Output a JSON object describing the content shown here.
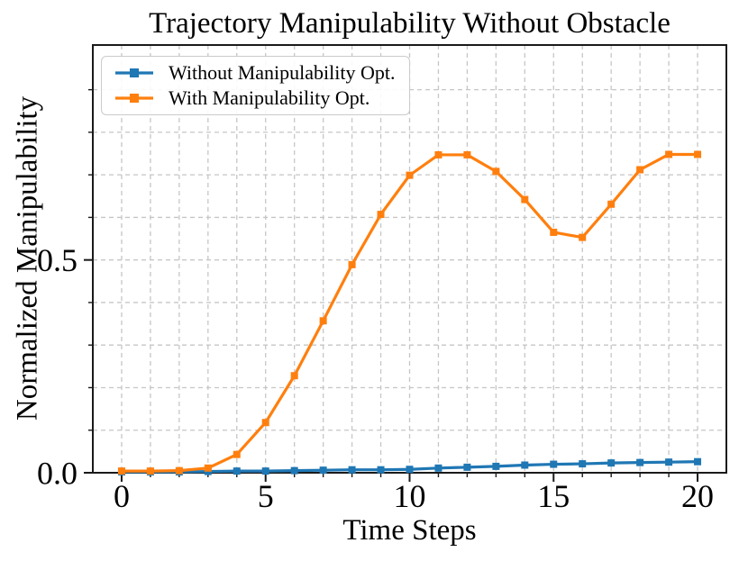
{
  "chart_data": {
    "type": "line",
    "title": "Trajectory Manipulability Without Obstacle",
    "xlabel": "Time Steps",
    "ylabel": "Normalized Manipulability",
    "x": [
      0,
      1,
      2,
      3,
      4,
      5,
      6,
      7,
      8,
      9,
      10,
      11,
      12,
      13,
      14,
      15,
      16,
      17,
      18,
      19,
      20
    ],
    "series": [
      {
        "name": "Without Manipulability Opt.",
        "color": "#1f77b4",
        "marker": "square",
        "values": [
          0.002,
          0.002,
          0.002,
          0.003,
          0.004,
          0.004,
          0.005,
          0.006,
          0.007,
          0.007,
          0.008,
          0.011,
          0.013,
          0.015,
          0.018,
          0.02,
          0.021,
          0.023,
          0.024,
          0.025,
          0.026
        ]
      },
      {
        "name": "With Manipulability Opt.",
        "color": "#ff7f0e",
        "marker": "square",
        "values": [
          0.004,
          0.004,
          0.005,
          0.011,
          0.043,
          0.118,
          0.228,
          0.357,
          0.489,
          0.607,
          0.699,
          0.747,
          0.747,
          0.708,
          0.642,
          0.565,
          0.553,
          0.631,
          0.712,
          0.748,
          0.748
        ]
      }
    ],
    "xlim": [
      -1,
      21
    ],
    "ylim": [
      0,
      1.005
    ],
    "xticks_major": [
      0,
      5,
      10,
      15,
      20
    ],
    "xtick_labels": [
      "0",
      "5",
      "10",
      "15",
      "20"
    ],
    "xtick_minor_step": 1,
    "yticks_major": [
      0.0,
      0.5
    ],
    "ytick_labels": [
      "0.0",
      "0.5"
    ],
    "ytick_minor_step": 0.1,
    "grid": {
      "which": "minor+major",
      "style": "dashed"
    },
    "legend_position": "upper left",
    "colors": {
      "grid": "#c6c6c6",
      "spine": "#1a1a1a",
      "text": "#000000"
    }
  }
}
